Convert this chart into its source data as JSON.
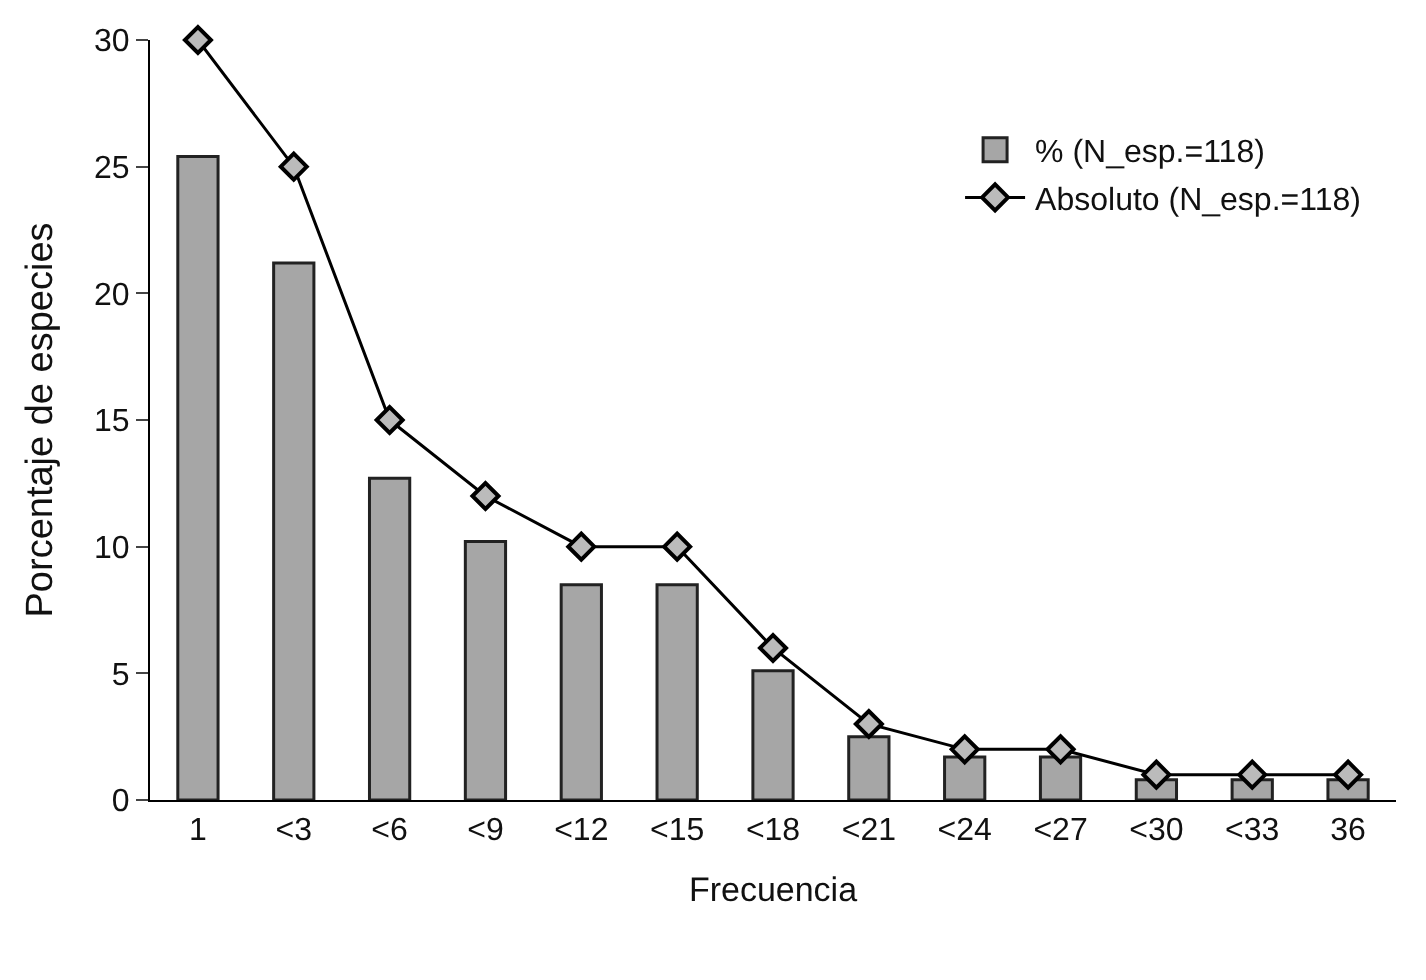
{
  "chart_data": {
    "type": "bar",
    "xlabel": "Frecuencia",
    "ylabel": "Porcentaje de especies",
    "categories": [
      "1",
      "<3",
      "<6",
      "<9",
      "<12",
      "<15",
      "<18",
      "<21",
      "<24",
      "<27",
      "<30",
      "<33",
      "36"
    ],
    "series": [
      {
        "name": "% (N_esp.=118)",
        "color": "#a6a6a6",
        "values": [
          25.4,
          21.2,
          12.7,
          10.2,
          8.5,
          8.5,
          5.1,
          2.5,
          1.7,
          1.7,
          0.8,
          0.8,
          0.8
        ]
      },
      {
        "name": "Absoluto (N_esp.=118)",
        "type": "line",
        "color": "#000000",
        "values": [
          30,
          25,
          15,
          12,
          10,
          10,
          6,
          3,
          2,
          2,
          1,
          1,
          1
        ]
      }
    ],
    "ylim": [
      0,
      30
    ],
    "yticks": [
      0,
      5,
      10,
      15,
      20,
      25,
      30
    ],
    "legend": "top right",
    "marker": "diamond",
    "line_style": "solid"
  }
}
